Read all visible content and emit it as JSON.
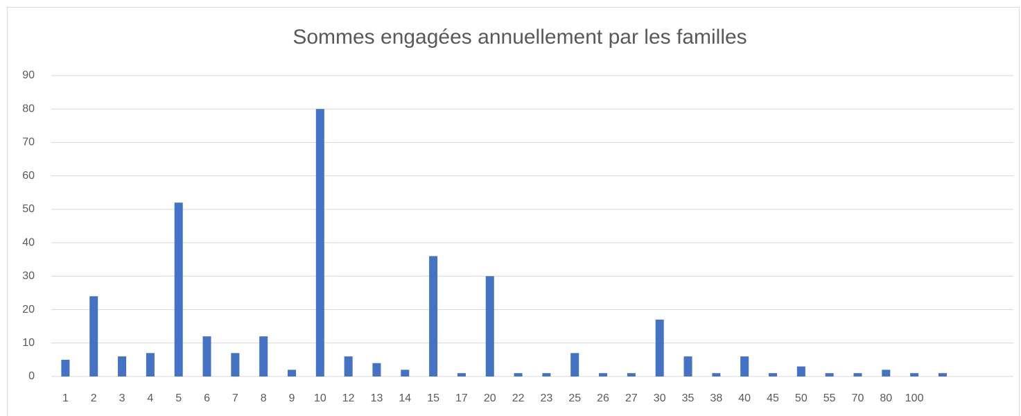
{
  "chart_data": {
    "type": "bar",
    "title": "Sommes engagées annuellement par les familles",
    "categories": [
      "1",
      "2",
      "3",
      "4",
      "5",
      "6",
      "7",
      "8",
      "9",
      "10",
      "12",
      "13",
      "14",
      "15",
      "17",
      "20",
      "22",
      "23",
      "25",
      "26",
      "27",
      "30",
      "35",
      "38",
      "40",
      "45",
      "50",
      "55",
      "70",
      "80",
      "100",
      null,
      null,
      null
    ],
    "values": [
      5,
      24,
      6,
      7,
      52,
      12,
      7,
      12,
      2,
      80,
      6,
      4,
      2,
      36,
      1,
      30,
      1,
      1,
      7,
      1,
      1,
      17,
      6,
      1,
      6,
      1,
      3,
      1,
      1,
      2,
      1,
      1,
      null,
      null
    ],
    "color": "#4472c4",
    "ylim": [
      0,
      90
    ],
    "yticks": [
      0,
      10,
      20,
      30,
      40,
      50,
      60,
      70,
      80,
      90
    ],
    "grid": true
  }
}
